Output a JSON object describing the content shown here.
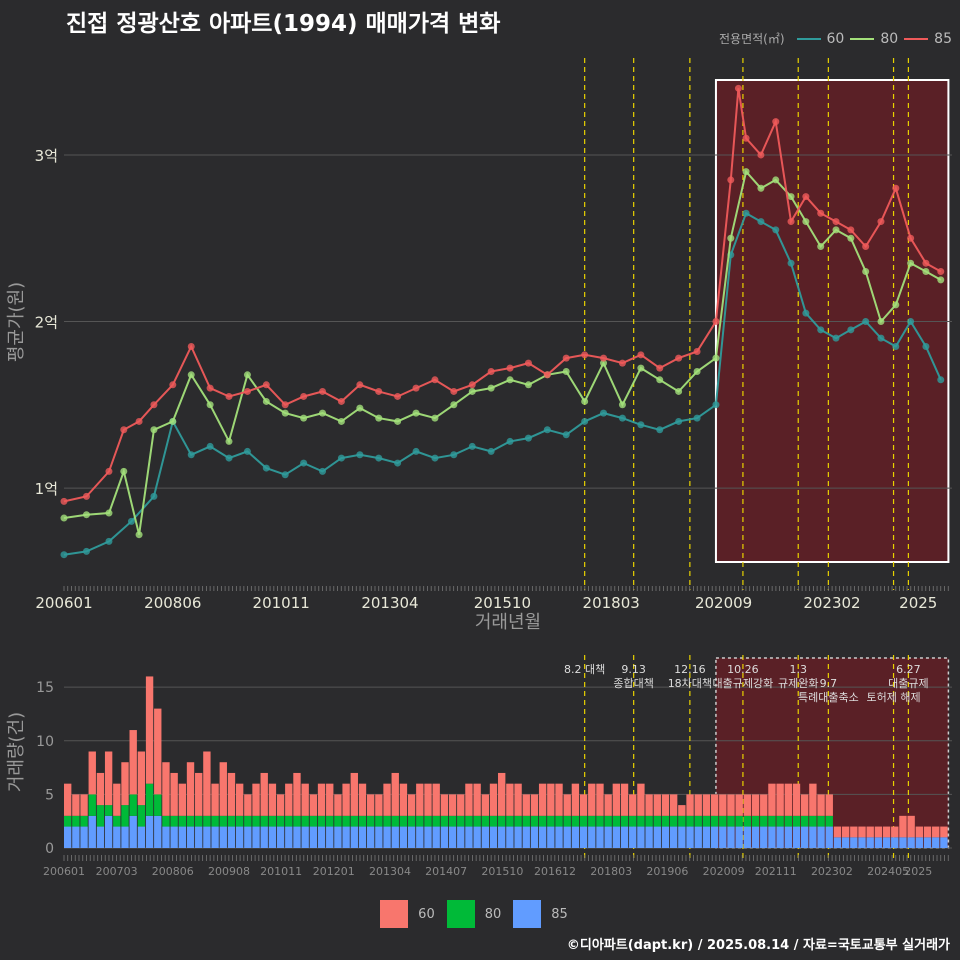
{
  "title": "진접 정광산호 아파트(1994) 매매가격 변화",
  "footer": "©디아파트(dapt.kr) / 2025.08.14 / 자료=국토교통부 실거래가",
  "colors": {
    "s60": "#2f9b9b",
    "s80": "#a3e07a",
    "s85": "#ef5a5a",
    "b60": "#f8766d",
    "b80": "#00ba38",
    "b85": "#619cff",
    "policy": "#e8d200",
    "box": "#ffffff",
    "shade": "#6b1e24"
  },
  "legend_top": {
    "title": "전용면적(㎡)",
    "items": [
      {
        "label": "60",
        "color": "#2f9b9b"
      },
      {
        "label": "80",
        "color": "#a3e07a"
      },
      {
        "label": "85",
        "color": "#ef5a5a"
      }
    ]
  },
  "legend_bottom": {
    "items": [
      {
        "label": "60",
        "color": "#f8766d"
      },
      {
        "label": "80",
        "color": "#00ba38"
      },
      {
        "label": "85",
        "color": "#619cff"
      }
    ]
  },
  "chart_data": [
    {
      "type": "line",
      "title": "진접 정광산호 아파트(1994) 매매가격 변화",
      "xlabel": "거래년월",
      "ylabel": "평균가(원)",
      "x_range": [
        "2006-01",
        "2025-08"
      ],
      "ylim": [
        40000000,
        360000000
      ],
      "y_ticks": [
        {
          "value": 100000000,
          "label": "1억"
        },
        {
          "value": 200000000,
          "label": "2억"
        },
        {
          "value": 300000000,
          "label": "3억"
        }
      ],
      "x_ticks": [
        {
          "t": 2006.0,
          "label": "200601"
        },
        {
          "t": 2008.42,
          "label": "200806"
        },
        {
          "t": 2010.83,
          "label": "201011"
        },
        {
          "t": 2013.25,
          "label": "201304"
        },
        {
          "t": 2015.75,
          "label": "201510"
        },
        {
          "t": 2018.17,
          "label": "201803"
        },
        {
          "t": 2020.67,
          "label": "202009"
        },
        {
          "t": 2023.08,
          "label": "202302"
        },
        {
          "t": 2025.0,
          "label": "2025"
        }
      ],
      "policy_lines": [
        2017.58,
        2018.67,
        2019.92,
        2021.1,
        2022.33,
        2023.0,
        2024.45,
        2024.78
      ],
      "highlight_box": {
        "from": 2020.5,
        "to": 2025.67
      },
      "series": [
        {
          "name": "60",
          "x": [
            2006.0,
            2006.5,
            2007.0,
            2007.5,
            2008.0,
            2008.42,
            2008.83,
            2009.25,
            2009.67,
            2010.08,
            2010.5,
            2010.92,
            2011.33,
            2011.75,
            2012.17,
            2012.58,
            2013.0,
            2013.42,
            2013.83,
            2014.25,
            2014.67,
            2015.08,
            2015.5,
            2015.92,
            2016.33,
            2016.75,
            2017.17,
            2017.58,
            2018.0,
            2018.42,
            2018.83,
            2019.25,
            2019.67,
            2020.08,
            2020.5,
            2020.83,
            2021.17,
            2021.5,
            2021.83,
            2022.17,
            2022.5,
            2022.83,
            2023.17,
            2023.5,
            2023.83,
            2024.17,
            2024.5,
            2024.83,
            2025.17,
            2025.5
          ],
          "y": [
            60000000,
            62000000,
            68000000,
            80000000,
            95000000,
            140000000,
            120000000,
            125000000,
            118000000,
            122000000,
            112000000,
            108000000,
            115000000,
            110000000,
            118000000,
            120000000,
            118000000,
            115000000,
            122000000,
            118000000,
            120000000,
            125000000,
            122000000,
            128000000,
            130000000,
            135000000,
            132000000,
            140000000,
            145000000,
            142000000,
            138000000,
            135000000,
            140000000,
            142000000,
            150000000,
            240000000,
            265000000,
            260000000,
            255000000,
            235000000,
            205000000,
            195000000,
            190000000,
            195000000,
            200000000,
            190000000,
            185000000,
            200000000,
            185000000,
            165000000
          ]
        },
        {
          "name": "80",
          "x": [
            2006.0,
            2006.5,
            2007.0,
            2007.33,
            2007.67,
            2008.0,
            2008.42,
            2008.83,
            2009.25,
            2009.67,
            2010.08,
            2010.5,
            2010.92,
            2011.33,
            2011.75,
            2012.17,
            2012.58,
            2013.0,
            2013.42,
            2013.83,
            2014.25,
            2014.67,
            2015.08,
            2015.5,
            2015.92,
            2016.33,
            2016.75,
            2017.17,
            2017.58,
            2018.0,
            2018.42,
            2018.83,
            2019.25,
            2019.67,
            2020.08,
            2020.5,
            2020.83,
            2021.17,
            2021.5,
            2021.83,
            2022.17,
            2022.5,
            2022.83,
            2023.17,
            2023.5,
            2023.83,
            2024.17,
            2024.5,
            2024.83,
            2025.17,
            2025.5
          ],
          "y": [
            82000000,
            84000000,
            85000000,
            110000000,
            72000000,
            135000000,
            140000000,
            168000000,
            150000000,
            128000000,
            168000000,
            152000000,
            145000000,
            142000000,
            145000000,
            140000000,
            148000000,
            142000000,
            140000000,
            145000000,
            142000000,
            150000000,
            158000000,
            160000000,
            165000000,
            162000000,
            168000000,
            170000000,
            152000000,
            175000000,
            150000000,
            172000000,
            165000000,
            158000000,
            170000000,
            178000000,
            250000000,
            290000000,
            280000000,
            285000000,
            275000000,
            260000000,
            245000000,
            255000000,
            250000000,
            230000000,
            200000000,
            210000000,
            235000000,
            230000000,
            225000000
          ]
        },
        {
          "name": "85",
          "x": [
            2006.0,
            2006.5,
            2007.0,
            2007.33,
            2007.67,
            2008.0,
            2008.42,
            2008.83,
            2009.25,
            2009.67,
            2010.08,
            2010.5,
            2010.92,
            2011.33,
            2011.75,
            2012.17,
            2012.58,
            2013.0,
            2013.42,
            2013.83,
            2014.25,
            2014.67,
            2015.08,
            2015.5,
            2015.92,
            2016.33,
            2016.75,
            2017.17,
            2017.58,
            2018.0,
            2018.42,
            2018.83,
            2019.25,
            2019.67,
            2020.08,
            2020.5,
            2020.83,
            2021.0,
            2021.17,
            2021.5,
            2021.83,
            2022.17,
            2022.5,
            2022.83,
            2023.17,
            2023.5,
            2023.83,
            2024.17,
            2024.5,
            2024.83,
            2025.17,
            2025.5
          ],
          "y": [
            92000000,
            95000000,
            110000000,
            135000000,
            140000000,
            150000000,
            162000000,
            185000000,
            160000000,
            155000000,
            158000000,
            162000000,
            150000000,
            155000000,
            158000000,
            152000000,
            162000000,
            158000000,
            155000000,
            160000000,
            165000000,
            158000000,
            162000000,
            170000000,
            172000000,
            175000000,
            168000000,
            178000000,
            180000000,
            178000000,
            175000000,
            180000000,
            172000000,
            178000000,
            182000000,
            200000000,
            285000000,
            340000000,
            310000000,
            300000000,
            320000000,
            260000000,
            275000000,
            265000000,
            260000000,
            255000000,
            245000000,
            260000000,
            280000000,
            250000000,
            235000000,
            230000000
          ]
        }
      ]
    },
    {
      "type": "bar",
      "stacked": true,
      "ylabel": "거래량(건)",
      "ylim": [
        0,
        18
      ],
      "y_ticks": [
        0,
        5,
        10,
        15
      ],
      "x_ticks": [
        {
          "t": 2006.0,
          "label": "200601"
        },
        {
          "t": 2007.17,
          "label": "200703"
        },
        {
          "t": 2008.42,
          "label": "200806"
        },
        {
          "t": 2009.67,
          "label": "200908"
        },
        {
          "t": 2010.83,
          "label": "201011"
        },
        {
          "t": 2012.0,
          "label": "201201"
        },
        {
          "t": 2013.25,
          "label": "201304"
        },
        {
          "t": 2014.5,
          "label": "201407"
        },
        {
          "t": 2015.75,
          "label": "201510"
        },
        {
          "t": 2016.92,
          "label": "201612"
        },
        {
          "t": 2018.17,
          "label": "201803"
        },
        {
          "t": 2019.42,
          "label": "201906"
        },
        {
          "t": 2020.67,
          "label": "202009"
        },
        {
          "t": 2021.83,
          "label": "202111"
        },
        {
          "t": 2023.08,
          "label": "202302"
        },
        {
          "t": 2024.33,
          "label": "202405"
        },
        {
          "t": 2025.0,
          "label": "2025"
        }
      ],
      "policy_lines": [
        2017.58,
        2018.67,
        2019.92,
        2021.1,
        2022.33,
        2023.0,
        2024.45,
        2024.78
      ],
      "highlight_box": {
        "from": 2020.5,
        "to": 2025.67
      },
      "annotations": [
        {
          "t": 2017.58,
          "lines": [
            "8.2 대책"
          ]
        },
        {
          "t": 2018.67,
          "lines": [
            "9.13",
            "종합대책"
          ]
        },
        {
          "t": 2019.92,
          "lines": [
            "12.16",
            "18차대책"
          ]
        },
        {
          "t": 2021.1,
          "lines": [
            "10.26",
            "대출규제강화"
          ]
        },
        {
          "t": 2022.33,
          "lines": [
            "1.3",
            "규제완화"
          ]
        },
        {
          "t": 2023.0,
          "lines": [
            "",
            "9.7",
            "특례대출축소"
          ]
        },
        {
          "t": 2024.45,
          "lines": [
            "",
            "",
            "토허제 해제"
          ]
        },
        {
          "t": 2024.78,
          "lines": [
            "6.27",
            "대출규제"
          ]
        }
      ],
      "series": [
        {
          "name": "60",
          "values": [
            3,
            2,
            2,
            4,
            3,
            5,
            3,
            4,
            6,
            5,
            10,
            8,
            5,
            4,
            3,
            5,
            4,
            6,
            3,
            5,
            4,
            3,
            2,
            3,
            4,
            3,
            2,
            3,
            4,
            3,
            2,
            3,
            3,
            2,
            3,
            4,
            3,
            2,
            2,
            3,
            4,
            3,
            2,
            3,
            3,
            3,
            2,
            2,
            2,
            3,
            3,
            2,
            3,
            4,
            3,
            3,
            2,
            2,
            3,
            3,
            3,
            2,
            3,
            2,
            3,
            3,
            2,
            3,
            3,
            2,
            3,
            2,
            2,
            2,
            2,
            1,
            2,
            2,
            2,
            2,
            2,
            2,
            2,
            2,
            2,
            2,
            3,
            3,
            3,
            3,
            2,
            3,
            2,
            2,
            1,
            1,
            1,
            1,
            1,
            1,
            1,
            1,
            2,
            2,
            1,
            1,
            1,
            1
          ]
        },
        {
          "name": "80",
          "values": [
            1,
            1,
            1,
            2,
            2,
            1,
            1,
            2,
            2,
            2,
            3,
            2,
            1,
            1,
            1,
            1,
            1,
            1,
            1,
            1,
            1,
            1,
            1,
            1,
            1,
            1,
            1,
            1,
            1,
            1,
            1,
            1,
            1,
            1,
            1,
            1,
            1,
            1,
            1,
            1,
            1,
            1,
            1,
            1,
            1,
            1,
            1,
            1,
            1,
            1,
            1,
            1,
            1,
            1,
            1,
            1,
            1,
            1,
            1,
            1,
            1,
            1,
            1,
            1,
            1,
            1,
            1,
            1,
            1,
            1,
            1,
            1,
            1,
            1,
            1,
            1,
            1,
            1,
            1,
            1,
            1,
            1,
            1,
            1,
            1,
            1,
            1,
            1,
            1,
            1,
            1,
            1,
            1,
            1,
            0,
            0,
            0,
            0,
            0,
            0,
            0,
            0,
            0,
            0,
            0,
            0,
            0,
            0
          ]
        },
        {
          "name": "85",
          "values": [
            2,
            2,
            2,
            3,
            2,
            3,
            2,
            2,
            3,
            2,
            3,
            3,
            2,
            2,
            2,
            2,
            2,
            2,
            2,
            2,
            2,
            2,
            2,
            2,
            2,
            2,
            2,
            2,
            2,
            2,
            2,
            2,
            2,
            2,
            2,
            2,
            2,
            2,
            2,
            2,
            2,
            2,
            2,
            2,
            2,
            2,
            2,
            2,
            2,
            2,
            2,
            2,
            2,
            2,
            2,
            2,
            2,
            2,
            2,
            2,
            2,
            2,
            2,
            2,
            2,
            2,
            2,
            2,
            2,
            2,
            2,
            2,
            2,
            2,
            2,
            2,
            2,
            2,
            2,
            2,
            2,
            2,
            2,
            2,
            2,
            2,
            2,
            2,
            2,
            2,
            2,
            2,
            2,
            2,
            1,
            1,
            1,
            1,
            1,
            1,
            1,
            1,
            1,
            1,
            1,
            1,
            1,
            1
          ]
        }
      ]
    }
  ]
}
